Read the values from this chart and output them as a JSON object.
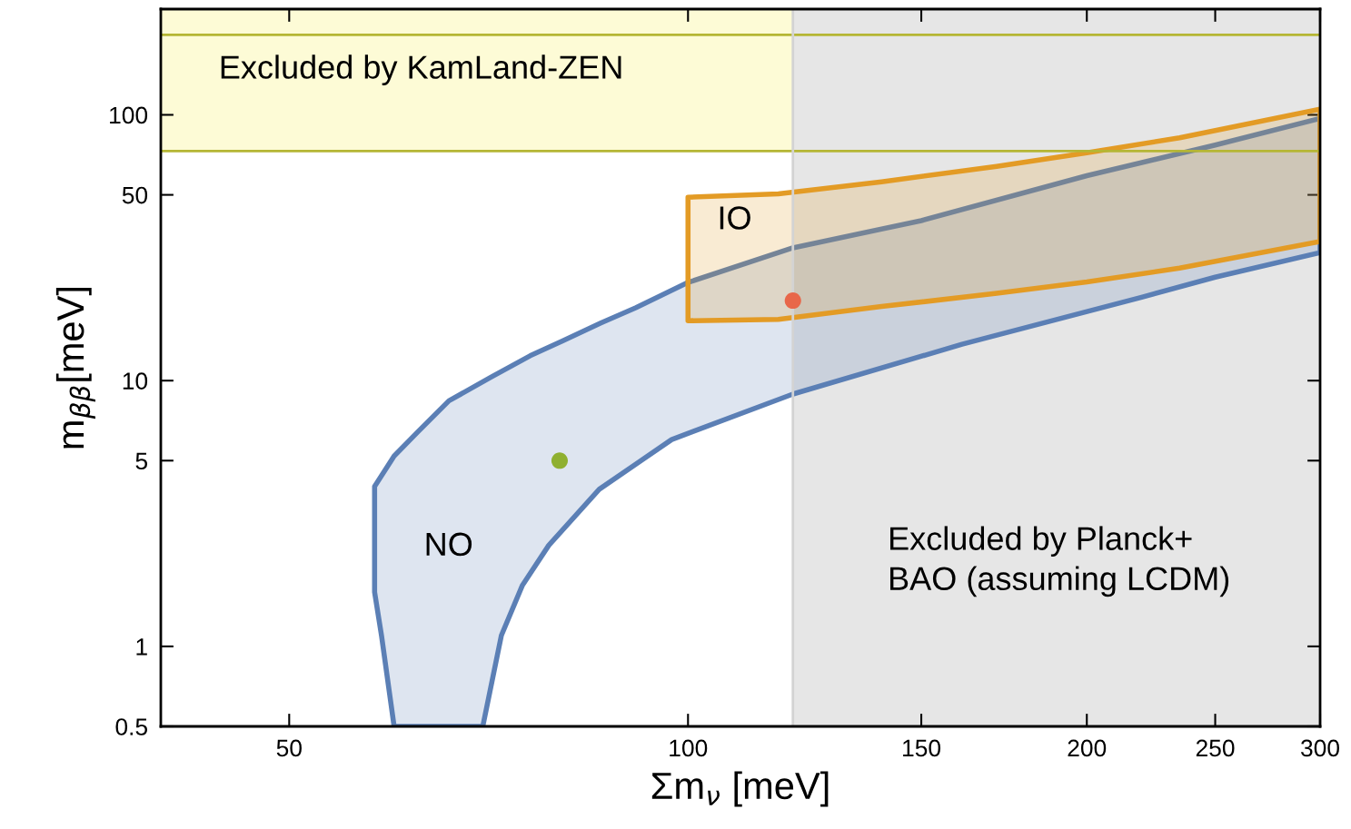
{
  "chart_data": {
    "type": "area",
    "xlabel": "Σm$_{ν}$ [meV]",
    "ylabel": "m$_{ββ}$[meV]",
    "log": "xy",
    "xlim": [
      40,
      300
    ],
    "ylim": [
      0.5,
      250
    ],
    "xticks": [
      50,
      100,
      150,
      200,
      250,
      300
    ],
    "yticks": [
      0.5,
      1,
      5,
      10,
      50,
      100
    ],
    "grid": false,
    "legend": false,
    "bands": [
      {
        "axis": "y",
        "from": 73,
        "to": 250,
        "label": "Excluded by KamLand-ZEN",
        "color": "#fdfbd6"
      },
      {
        "axis": "x",
        "from": 120,
        "to": 300,
        "label": "Excluded by Planck+\nBAO (assuming LCDM)",
        "color": "#e6e6e6"
      }
    ],
    "ref_lines": [
      {
        "axis": "y",
        "value": 73,
        "color": "#b5b634"
      },
      {
        "axis": "y",
        "value": 200,
        "color": "#b5b634"
      },
      {
        "axis": "x",
        "value": 120,
        "color": "#d3d3d3"
      }
    ],
    "series": [
      {
        "name": "NO",
        "color": "#5b7fb5",
        "x": [
          60,
          58.7,
          58,
          58,
          60,
          62.5,
          66,
          71,
          76,
          80.4,
          86,
          91.3,
          100,
          120,
          150,
          200,
          250,
          300,
          300,
          250,
          220,
          161,
          120,
          97.2,
          85.7,
          78.5,
          75,
          72.3,
          70
        ],
        "values": [
          0.5,
          1.1,
          1.6,
          4,
          5.2,
          6.4,
          8.4,
          10.3,
          12.4,
          14.1,
          16.5,
          18.8,
          23.4,
          31.6,
          40,
          59,
          77,
          97,
          30.3,
          24.5,
          20.6,
          13.7,
          8.9,
          6,
          3.9,
          2.4,
          1.7,
          1.1,
          0.5
        ]
      },
      {
        "name": "IO",
        "color": "#e39b25",
        "x": [
          100,
          100,
          117,
          140,
          171,
          200,
          235,
          300,
          300,
          235,
          200,
          171,
          140,
          117
        ],
        "values": [
          16.8,
          49,
          50.4,
          56,
          64,
          72,
          82,
          105,
          33.4,
          26.5,
          23.5,
          21.3,
          19,
          17
        ]
      },
      {
        "type": "scatter",
        "color": "#8fb030",
        "x": [
          80
        ],
        "values": [
          5
        ]
      },
      {
        "type": "scatter",
        "color": "#e8674a",
        "x": [
          120
        ],
        "values": [
          20
        ]
      }
    ]
  }
}
